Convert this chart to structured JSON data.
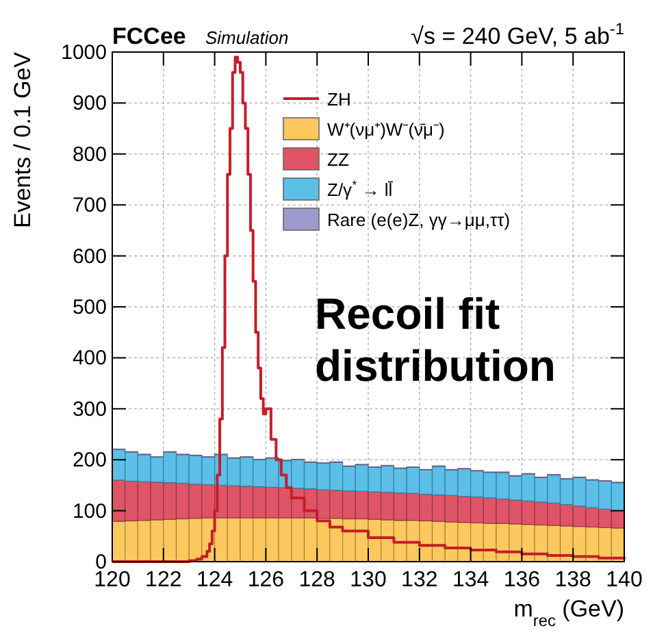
{
  "chart_data": {
    "type": "bar",
    "title": "FCCee",
    "subtitle": "Simulation",
    "xlabel": "m$_{rec}$ (GeV)",
    "ylabel": "Events / 0.1 GeV",
    "annotations": [
      "√s = 240 GeV, 5 ab$^{-1}$",
      "Recoil fit distribution"
    ],
    "x": [
      120.25,
      120.75,
      121.25,
      121.75,
      122.25,
      122.75,
      123.25,
      123.75,
      124.25,
      124.75,
      125.25,
      125.75,
      126.25,
      126.75,
      127.25,
      127.75,
      128.25,
      128.75,
      129.25,
      129.75,
      130.25,
      130.75,
      131.25,
      131.75,
      132.25,
      132.75,
      133.25,
      133.75,
      134.25,
      134.75,
      135.25,
      135.75,
      136.25,
      136.75,
      137.25,
      137.75,
      138.25,
      138.75,
      139.25,
      139.75
    ],
    "stacked": true,
    "series": [
      {
        "name": "ZH",
        "color": "#c41e2a",
        "type": "step",
        "x": [
          120,
          121,
          122,
          123,
          123.3,
          123.5,
          123.7,
          123.8,
          123.9,
          124,
          124.1,
          124.2,
          124.3,
          124.4,
          124.5,
          124.6,
          124.7,
          124.8,
          124.9,
          125,
          125.1,
          125.2,
          125.3,
          125.4,
          125.5,
          125.6,
          125.7,
          125.8,
          125.9,
          126,
          126.2,
          126.4,
          126.6,
          126.8,
          127,
          127.5,
          128,
          128.5,
          129,
          130,
          131,
          132,
          133,
          134,
          135,
          136,
          137,
          138,
          139,
          140
        ],
        "values": [
          0,
          0,
          0,
          2,
          5,
          10,
          20,
          35,
          60,
          100,
          170,
          280,
          420,
          600,
          760,
          850,
          960,
          990,
          980,
          960,
          900,
          850,
          760,
          650,
          550,
          450,
          380,
          320,
          290,
          300,
          240,
          200,
          170,
          145,
          125,
          100,
          80,
          68,
          60,
          47,
          38,
          32,
          27,
          23,
          19,
          15,
          12,
          10,
          7,
          5
        ]
      },
      {
        "name": "W⁺(νμ⁺)W⁻(ν̄μ⁻)",
        "color": "#fdc95e",
        "values": [
          79,
          80,
          81,
          82,
          83,
          84,
          85,
          86,
          86,
          86,
          86,
          86,
          86,
          86,
          86,
          86,
          85,
          85,
          84,
          84,
          83,
          82,
          81,
          81,
          80,
          79,
          78,
          77,
          76,
          75,
          75,
          74,
          73,
          72,
          71,
          70,
          69,
          68,
          67,
          66
        ]
      },
      {
        "name": "ZZ",
        "color": "#df5466",
        "values": [
          81,
          78,
          76,
          74,
          72,
          70,
          67,
          65,
          64,
          63,
          62,
          61,
          60,
          59,
          58,
          57,
          56,
          55,
          55,
          54,
          54,
          54,
          54,
          53,
          52,
          52,
          52,
          51,
          51,
          50,
          48,
          47,
          46,
          45,
          44,
          42,
          40,
          38,
          36,
          34
        ]
      },
      {
        "name": "Z/γ$^{*}$ → ll̄",
        "color": "#5bbfe8",
        "values": [
          60,
          57,
          53,
          49,
          60,
          56,
          56,
          54,
          60,
          54,
          57,
          53,
          57,
          53,
          56,
          52,
          52,
          55,
          48,
          52,
          48,
          52,
          48,
          51,
          48,
          56,
          50,
          54,
          51,
          50,
          52,
          47,
          53,
          48,
          55,
          50,
          56,
          54,
          55,
          55
        ]
      },
      {
        "name": "Rare (e(e)Z,  γγ→μμ,ττ)",
        "color": "#9d9acb",
        "values": [
          1,
          1,
          1,
          1,
          1,
          1,
          1,
          1,
          1,
          1,
          1,
          1,
          1,
          1,
          1,
          1,
          1,
          1,
          1,
          1,
          1,
          1,
          1,
          1,
          1,
          1,
          1,
          1,
          1,
          1,
          1,
          1,
          1,
          1,
          1,
          1,
          1,
          1,
          1,
          1
        ]
      }
    ],
    "xlim": [
      120,
      140
    ],
    "xticks": [
      120,
      122,
      124,
      126,
      128,
      130,
      132,
      134,
      136,
      138,
      140
    ],
    "ylim": [
      0,
      1000
    ],
    "yticks": [
      0,
      100,
      200,
      300,
      400,
      500,
      600,
      700,
      800,
      900,
      1000
    ],
    "grid": true,
    "legend": "top right"
  }
}
